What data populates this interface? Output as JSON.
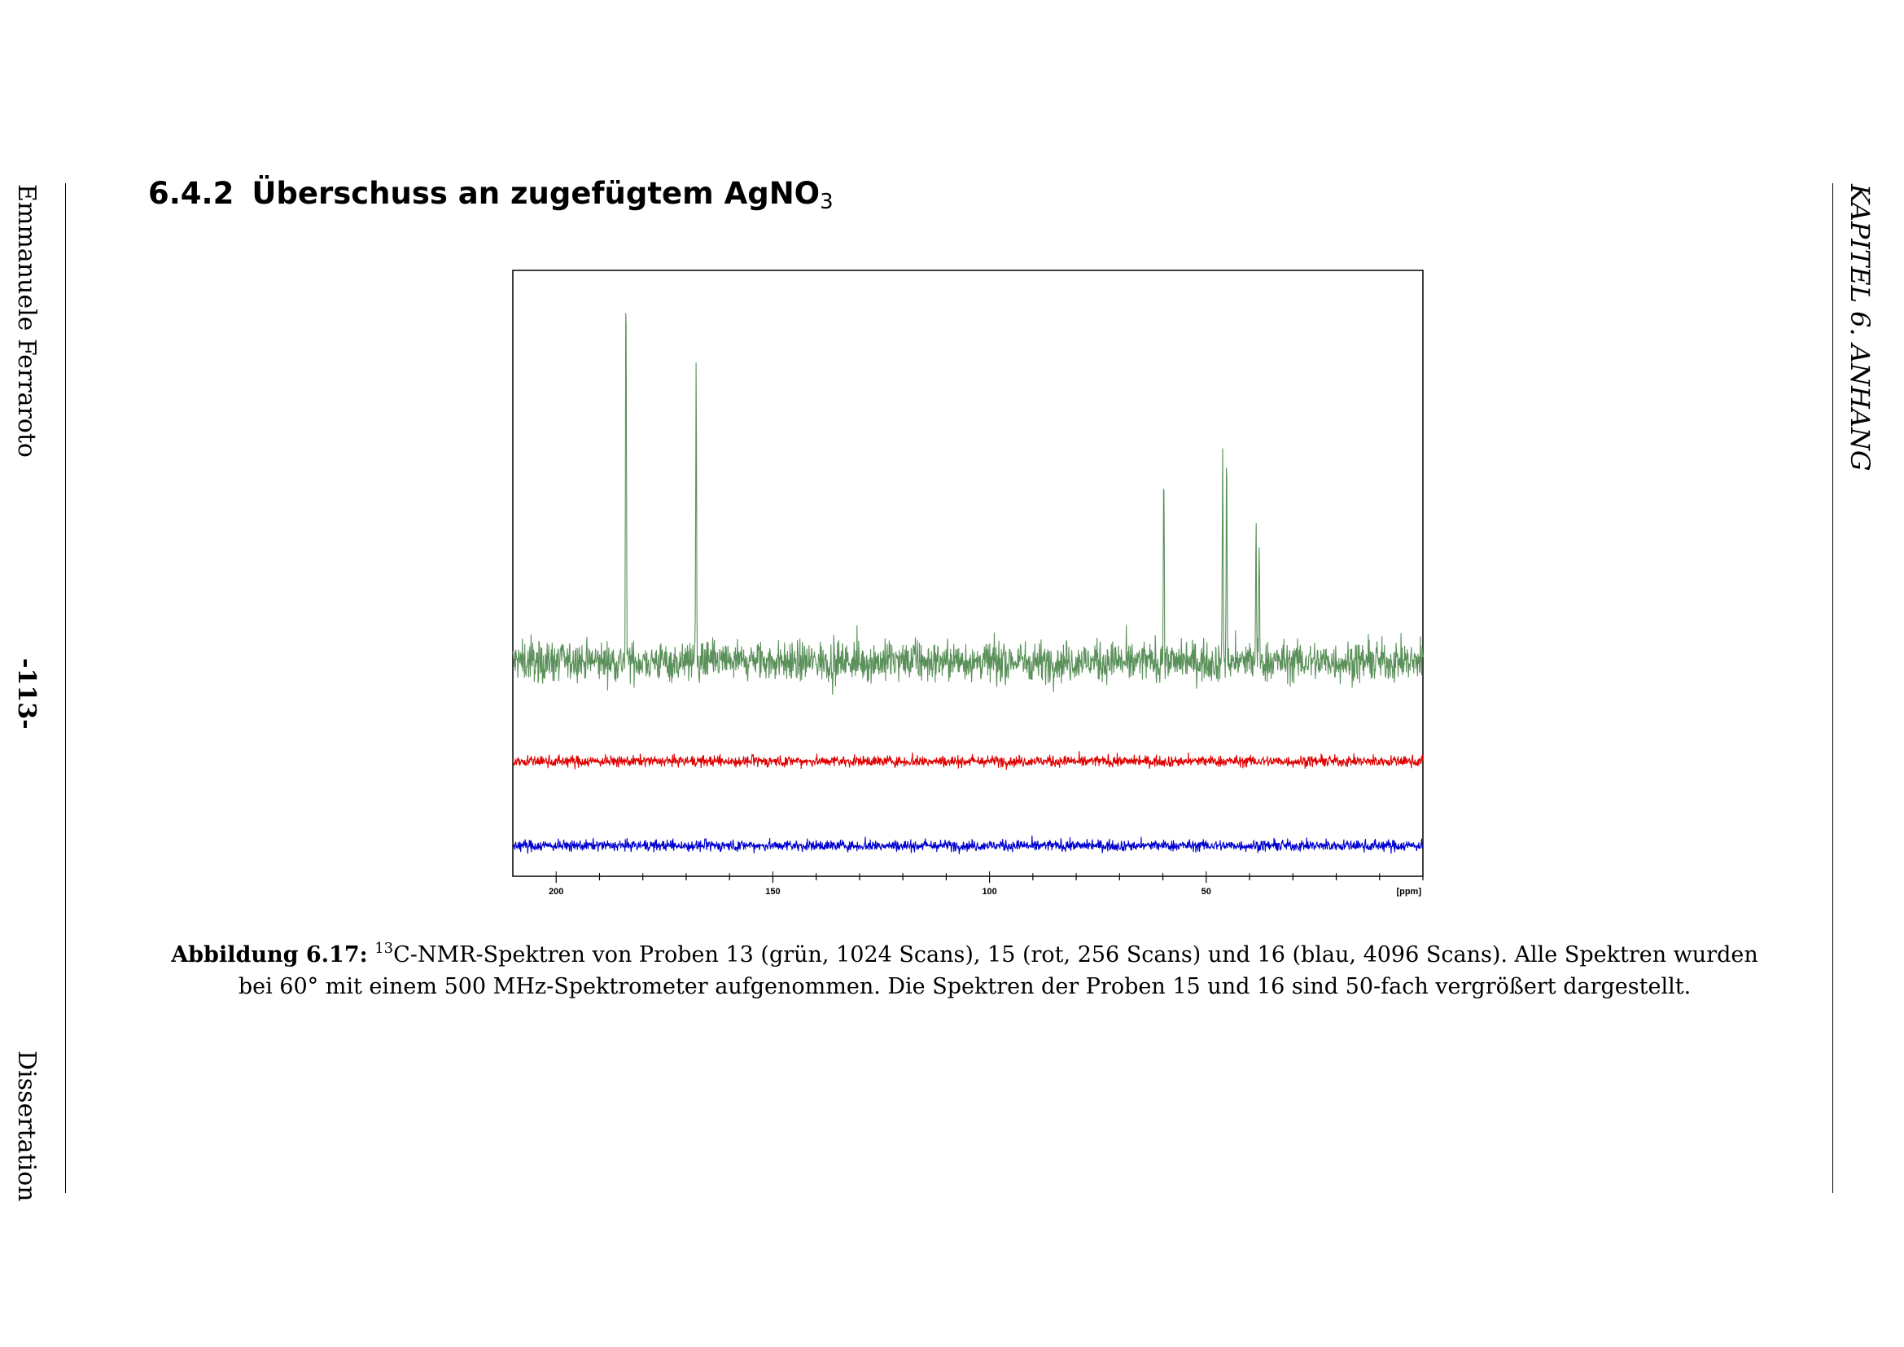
{
  "page": {
    "margin_left": {
      "author": "Emmanuele Ferraroto",
      "page_number": "-113-",
      "doc_type": "Dissertation"
    },
    "margin_right": {
      "running_head": "KAPITEL 6.  ANHANG"
    },
    "section": {
      "number": "6.4.2",
      "title": "Überschuss an zugefügtem AgNO",
      "title_subscript": "3"
    },
    "caption": {
      "label": "Abbildung 6.17:",
      "superscript": "13",
      "text": "C-NMR-Spektren von Proben 13 (grün, 1024 Scans), 15 (rot, 256 Scans) und 16 (blau, 4096 Scans). Alle Spektren wurden bei 60° mit einem 500 MHz-Spektrometer aufgenommen. Die Spektren der Proben 15 und 16 sind 50-fach vergrößert dargestellt."
    }
  },
  "chart_data": {
    "type": "line",
    "title": "",
    "xlabel": "",
    "ylabel": "",
    "x_unit": "[ppm]",
    "x_reversed": true,
    "xlim": [
      210,
      0
    ],
    "x_ticks": [
      200,
      150,
      100,
      50
    ],
    "x_tick_labels": [
      "200",
      "150",
      "100",
      "50"
    ],
    "grid": false,
    "legend": "none",
    "series": [
      {
        "color": "#5a9059",
        "baseline": 0.0,
        "noise": 0.5,
        "peaks": [
          {
            "ppm": 183.9,
            "height": 10.0
          },
          {
            "ppm": 167.7,
            "height": 7.8
          },
          {
            "ppm": 59.8,
            "height": 5.2
          },
          {
            "ppm": 46.2,
            "height": 5.1
          },
          {
            "ppm": 45.3,
            "height": 5.5
          },
          {
            "ppm": 38.5,
            "height": 3.5
          },
          {
            "ppm": 37.8,
            "height": 2.9
          }
        ]
      },
      {
        "color": "#e00000",
        "baseline": -2.6,
        "noise": 0.14,
        "peaks": []
      },
      {
        "color": "#0000d0",
        "baseline": -4.8,
        "noise": 0.14,
        "peaks": []
      }
    ],
    "ylim": [
      -5.6,
      10.2
    ]
  }
}
